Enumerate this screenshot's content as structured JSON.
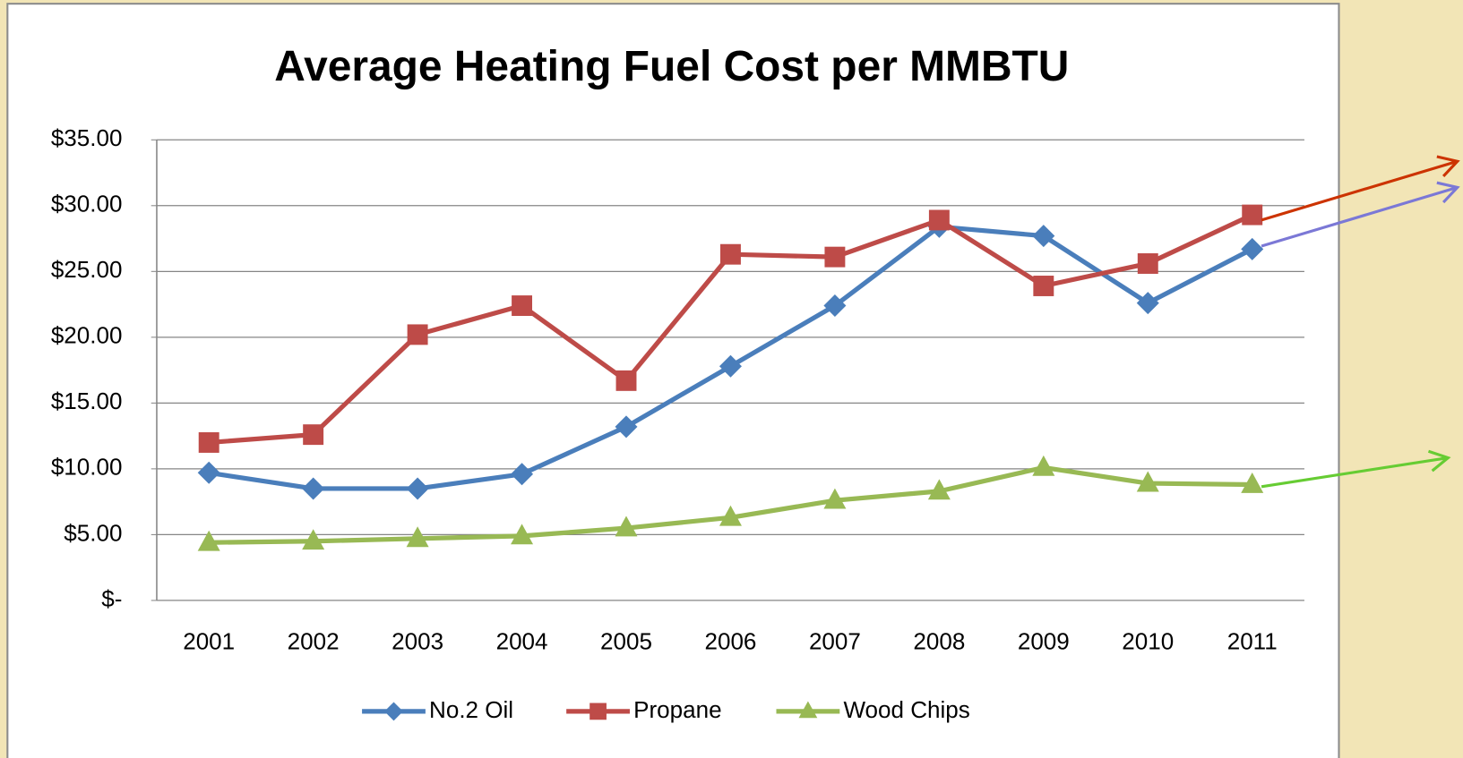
{
  "chart_data": {
    "type": "line",
    "title": "Average Heating Fuel Cost per MMBTU",
    "categories": [
      "2001",
      "2002",
      "2003",
      "2004",
      "2005",
      "2006",
      "2007",
      "2008",
      "2009",
      "2010",
      "2011"
    ],
    "series": [
      {
        "name": "No.2 Oil",
        "color": "#4a7ebb",
        "marker": "diamond",
        "values": [
          9.7,
          8.5,
          8.5,
          9.6,
          13.2,
          17.8,
          22.4,
          28.4,
          27.7,
          22.6,
          26.7
        ]
      },
      {
        "name": "Propane",
        "color": "#be4b48",
        "marker": "square",
        "values": [
          12.0,
          12.6,
          20.2,
          22.4,
          16.7,
          26.3,
          26.1,
          28.9,
          23.9,
          25.6,
          29.3
        ]
      },
      {
        "name": "Wood Chips",
        "color": "#98b954",
        "marker": "triangle",
        "values": [
          4.4,
          4.5,
          4.7,
          4.9,
          5.5,
          6.3,
          7.6,
          8.3,
          10.1,
          8.9,
          8.8
        ]
      }
    ],
    "ylim": [
      0,
      35
    ],
    "yticks": [
      {
        "value": 0,
        "label": "$-"
      },
      {
        "value": 5,
        "label": "$5.00"
      },
      {
        "value": 10,
        "label": "$10.00"
      },
      {
        "value": 15,
        "label": "$15.00"
      },
      {
        "value": 20,
        "label": "$20.00"
      },
      {
        "value": 25,
        "label": "$25.00"
      },
      {
        "value": 30,
        "label": "$30.00"
      },
      {
        "value": 35,
        "label": "$35.00"
      }
    ],
    "grid": true,
    "legend": "bottom"
  }
}
